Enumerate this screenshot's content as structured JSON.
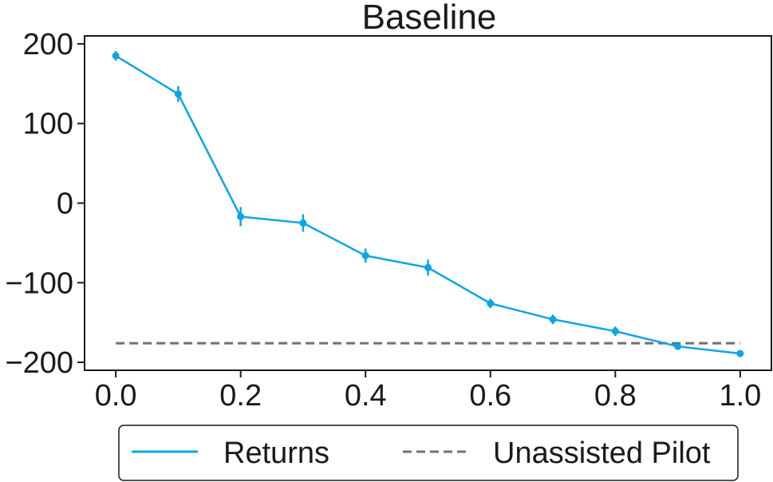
{
  "chart_data": {
    "type": "line",
    "title": "Baseline",
    "xlabel": "",
    "ylabel": "",
    "xlim": [
      -0.05,
      1.05
    ],
    "ylim": [
      -210,
      210
    ],
    "xticks": [
      "0.0",
      "0.2",
      "0.4",
      "0.6",
      "0.8",
      "1.0"
    ],
    "yticks": [
      "200",
      "100",
      "0",
      "−100",
      "−200"
    ],
    "xtick_values": [
      0.0,
      0.2,
      0.4,
      0.6,
      0.8,
      1.0
    ],
    "ytick_values": [
      200,
      100,
      0,
      -100,
      -200
    ],
    "grid": false,
    "legend_position": "bottom-center",
    "series": [
      {
        "name": "Returns",
        "color": "#0ba5e4",
        "style": "solid-with-markers-and-errorbars",
        "x": [
          0.0,
          0.1,
          0.2,
          0.3,
          0.4,
          0.5,
          0.6,
          0.7,
          0.8,
          0.9,
          1.0
        ],
        "y": [
          185,
          137,
          -17,
          -25,
          -66,
          -81,
          -126,
          -146,
          -161,
          -180,
          -189
        ],
        "yerr": [
          6,
          10,
          12,
          11,
          9,
          10,
          6,
          6,
          6,
          3,
          2
        ]
      },
      {
        "name": "Unassisted Pilot",
        "color": "#707070",
        "style": "dashed",
        "x": [
          0.0,
          1.0
        ],
        "y": [
          -176,
          -176
        ]
      }
    ]
  }
}
